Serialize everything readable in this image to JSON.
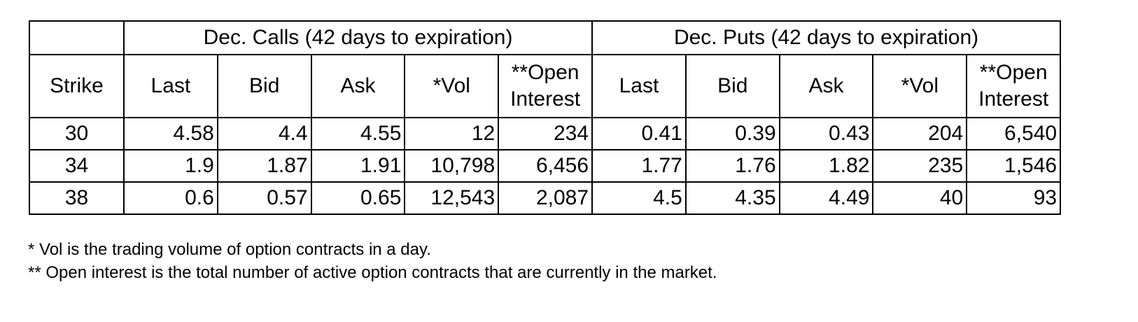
{
  "table": {
    "group_headers": [
      "Dec. Calls (42 days to expiration)",
      "Dec. Puts (42 days to expiration)"
    ],
    "columns": [
      "Strike",
      "Last",
      "Bid",
      "Ask",
      "*Vol",
      "**Open Interest",
      "Last",
      "Bid",
      "Ask",
      "*Vol",
      "**Open Interest"
    ],
    "rows": [
      [
        "30",
        "4.58",
        "4.4",
        "4.55",
        "12",
        "234",
        "0.41",
        "0.39",
        "0.43",
        "204",
        "6,540"
      ],
      [
        "34",
        "1.9",
        "1.87",
        "1.91",
        "10,798",
        "6,456",
        "1.77",
        "1.76",
        "1.82",
        "235",
        "1,546"
      ],
      [
        "38",
        "0.6",
        "0.57",
        "0.65",
        "12,543",
        "2,087",
        "4.5",
        "4.35",
        "4.49",
        "40",
        "93"
      ]
    ]
  },
  "notes": [
    "* Vol is the trading volume of option contracts in a day.",
    "** Open interest is the total number of active option contracts that are currently in the market."
  ]
}
